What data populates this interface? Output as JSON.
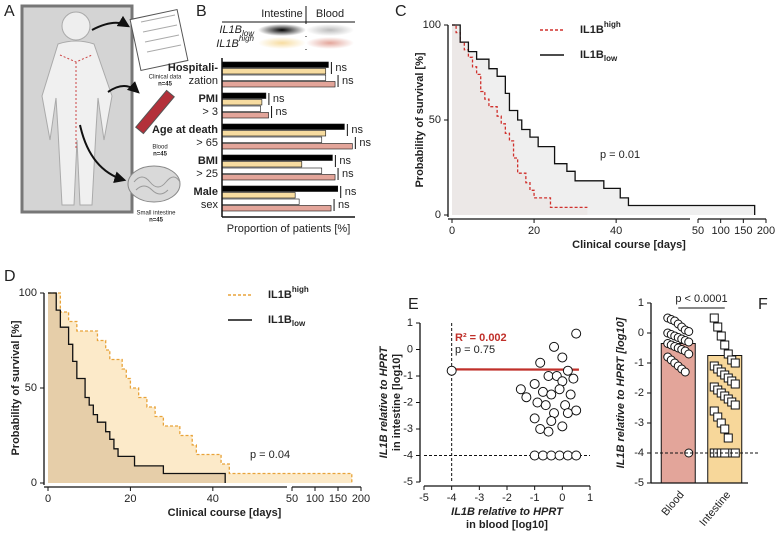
{
  "panel_a": {
    "panel": "A",
    "clinical": "Clinical data",
    "clinical_n": "n=45",
    "blood": "Blood",
    "blood_n": "n=45",
    "intestine": "Small intestine",
    "intestine_n": "n=45"
  },
  "chart_data": [
    {
      "type": "hbar",
      "panel": "B",
      "xlabel": "Proportion of patients [%]",
      "xlim": [
        0,
        100
      ],
      "legend": {
        "columns": [
          "Intestine",
          "Blood"
        ],
        "rows": [
          {
            "text": "IL1B",
            "suffix": "low",
            "suffix_position": "sub"
          },
          {
            "text": "IL1B",
            "suffix": "high",
            "suffix_position": "super"
          }
        ]
      },
      "categories": [
        [
          "Hospitali-",
          "zation"
        ],
        [
          "PMI",
          "> 3"
        ],
        [
          "Age at death",
          "> 65"
        ],
        [
          "BMI",
          "> 25"
        ],
        [
          "Male",
          "sex"
        ]
      ],
      "series": [
        {
          "color": "#000000",
          "values": [
            80,
            33,
            92,
            83,
            87
          ]
        },
        {
          "color": "#f7dca0",
          "values": [
            78,
            30,
            78,
            60,
            55
          ]
        },
        {
          "color": "#ffffff",
          "values": [
            78,
            29,
            75,
            75,
            58
          ]
        },
        {
          "color": "#e3a59a",
          "values": [
            85,
            35,
            98,
            85,
            82
          ]
        }
      ],
      "significance": [
        [
          "ns",
          "ns"
        ],
        [
          "ns",
          "ns"
        ],
        [
          "ns",
          "ns"
        ],
        [
          "ns",
          "ns"
        ],
        [
          "ns",
          "ns"
        ]
      ]
    },
    {
      "type": "km",
      "panel": "C",
      "ylabel": "Probability of survival [%]",
      "xlabel": "Clinical course [days]",
      "annotation": "p = 0.01",
      "ylim": [
        0,
        100
      ],
      "yticks": [
        0,
        50,
        100
      ],
      "xlim_segments": [
        [
          0,
          58
        ],
        [
          50,
          200
        ]
      ],
      "xticks_segments": [
        [
          0,
          20,
          40
        ],
        [
          50,
          100,
          150,
          200
        ]
      ],
      "series": [
        {
          "name": "IL1B",
          "name_suffix": "high",
          "suffix_position": "super",
          "color": "#d0312d",
          "fill": "#e9c3bd",
          "dashed": true,
          "x": [
            0,
            1,
            2,
            3,
            4,
            5,
            6,
            7,
            8,
            9,
            11,
            12,
            13,
            14,
            15,
            16,
            18,
            19,
            20,
            24,
            33
          ],
          "values": [
            100,
            96,
            91,
            87,
            83,
            78,
            74,
            65,
            61,
            57,
            52,
            48,
            43,
            39,
            30,
            22,
            17,
            13,
            9,
            4,
            4
          ]
        },
        {
          "name": "IL1B",
          "name_suffix": "low",
          "suffix_position": "sub",
          "color": "#111111",
          "fill": "#ececec",
          "dashed": false,
          "x": [
            0,
            2,
            4,
            6,
            9,
            11,
            13,
            14,
            16,
            17,
            19,
            21,
            25,
            28,
            30,
            37,
            41,
            43,
            175
          ],
          "values": [
            100,
            91,
            86,
            82,
            77,
            73,
            64,
            55,
            50,
            45,
            41,
            36,
            27,
            23,
            18,
            14,
            9,
            5,
            0
          ]
        }
      ]
    },
    {
      "type": "km",
      "panel": "D",
      "ylabel": "Probability of survival [%]",
      "xlabel": "Clinical course [days]",
      "annotation": "p = 0.04",
      "ylim": [
        0,
        100
      ],
      "yticks": [
        0,
        50,
        100
      ],
      "xlim_segments": [
        [
          0,
          58
        ],
        [
          50,
          200
        ]
      ],
      "xticks_segments": [
        [
          0,
          20,
          40
        ],
        [
          50,
          100,
          150,
          200
        ]
      ],
      "series": [
        {
          "name": "IL1B",
          "name_suffix": "high",
          "suffix_position": "super",
          "color": "#e8a33a",
          "fill": "#fbe6bf",
          "dashed": true,
          "x": [
            0,
            3,
            5,
            7,
            12,
            14,
            15,
            18,
            19,
            20,
            22,
            24,
            26,
            28,
            32,
            35,
            36,
            42,
            44,
            180
          ],
          "values": [
            100,
            90,
            85,
            80,
            75,
            70,
            65,
            60,
            55,
            50,
            45,
            40,
            35,
            30,
            25,
            20,
            15,
            10,
            5,
            0
          ]
        },
        {
          "name": "IL1B",
          "name_suffix": "low",
          "suffix_position": "sub",
          "color": "#111111",
          "fill": "#e2c9a3",
          "dashed": false,
          "x": [
            0,
            2,
            3,
            5,
            6,
            7,
            9,
            10,
            11,
            12,
            14,
            15,
            16,
            17,
            21,
            28,
            43
          ],
          "values": [
            100,
            91,
            82,
            73,
            64,
            55,
            45,
            41,
            36,
            32,
            27,
            23,
            18,
            14,
            9,
            5,
            0
          ]
        }
      ]
    },
    {
      "type": "scatter",
      "panel": "E",
      "ylabel": [
        "IL1B relative to HPRT",
        "in intestine [log10]"
      ],
      "xlabel": [
        "IL1B relative to HPRT",
        "in blood [log10]"
      ],
      "fit_label": "R² = 0.002",
      "p_label": "p = 0.75",
      "xlim": [
        -5,
        1
      ],
      "ylim": [
        -5,
        1
      ],
      "xticks": [
        -5,
        -4,
        -3,
        -2,
        -1,
        0,
        1
      ],
      "yticks": [
        -5,
        -4,
        -3,
        -2,
        -1,
        0,
        1
      ],
      "reference_lines": {
        "x": -4,
        "y": -4
      },
      "fit": {
        "color": "#c0302a",
        "x": [
          -4,
          0.6
        ],
        "values": [
          -0.75,
          -0.76
        ]
      },
      "x": [
        -4,
        0.5,
        -0.3,
        0,
        -0.8,
        -0.5,
        -0.2,
        0.2,
        0.4,
        -1.3,
        -1,
        -0.7,
        -0.4,
        0,
        -0.1,
        0.3,
        -0.9,
        -0.6,
        0.1,
        0.5,
        -0.3,
        0.2,
        -1,
        -0.4,
        0,
        -0.8,
        -0.5,
        -1,
        -0.7,
        -0.4,
        -0.1,
        0.2,
        0.5,
        -1.5
      ],
      "values": [
        -0.8,
        0.6,
        0.1,
        -0.3,
        -0.5,
        -1,
        -1,
        -0.8,
        -1.1,
        -1.8,
        -1.3,
        -1.6,
        -1.7,
        -1.2,
        -1.5,
        -1.7,
        -2,
        -2.1,
        -2.1,
        -2.3,
        -2.4,
        -2.4,
        -2.6,
        -2.7,
        -2.9,
        -3,
        -3.1,
        -4,
        -4,
        -4,
        -4,
        -4,
        -4,
        -1.5
      ]
    },
    {
      "type": "bar_scatter",
      "panel": "F",
      "ylabel": "IL1B relative to HPRT [log10]",
      "annotation": "p < 0.0001",
      "ylim": [
        -5,
        1
      ],
      "yticks": [
        -5,
        -4,
        -3,
        -2,
        -1,
        0,
        1
      ],
      "reference_line": -4,
      "categories": [
        "Blood",
        "Intestine"
      ],
      "colors": [
        "#e3a59a",
        "#f7d79a"
      ],
      "values": [
        -0.35,
        -0.75
      ],
      "points": [
        [
          0.5,
          0.45,
          0.4,
          0.3,
          0.2,
          0.1,
          0.05,
          0,
          -0.05,
          -0.1,
          -0.15,
          -0.2,
          -0.25,
          -0.3,
          -0.35,
          -0.4,
          -0.45,
          -0.5,
          -0.55,
          -0.6,
          -0.7,
          -0.8,
          -0.9,
          -1,
          -1.1,
          -1.2,
          -1.3,
          -4
        ],
        [
          0.5,
          0.2,
          -0.1,
          -0.4,
          -0.7,
          -0.9,
          -1,
          -1.1,
          -1.2,
          -1.3,
          -1.4,
          -1.5,
          -1.6,
          -1.7,
          -1.8,
          -1.9,
          -2,
          -2.1,
          -2.2,
          -2.3,
          -2.4,
          -2.6,
          -2.8,
          -3,
          -3.2,
          -3.5,
          -4,
          -4,
          -4,
          -4,
          -4,
          -4
        ]
      ]
    }
  ]
}
